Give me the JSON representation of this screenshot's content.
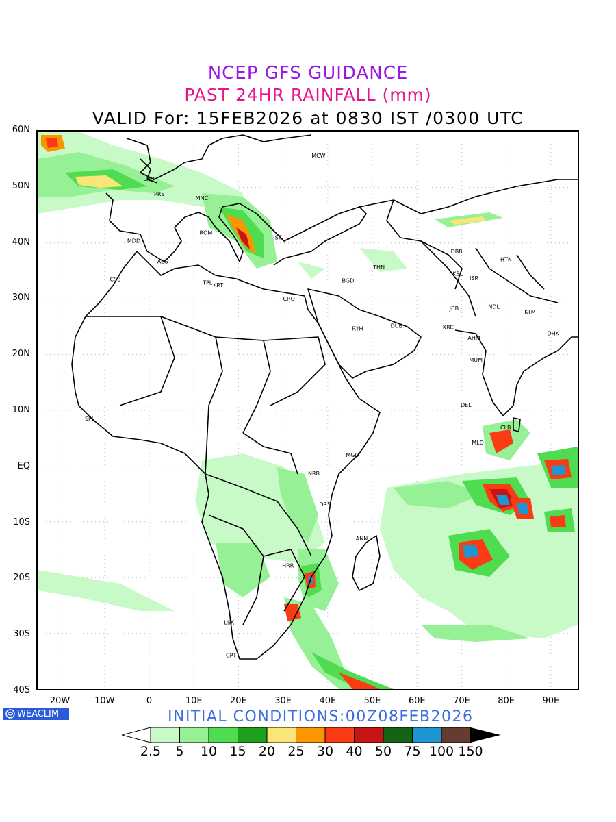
{
  "title": {
    "line1": "NCEP GFS GUIDANCE",
    "line2": "PAST 24HR RAINFALL (mm)",
    "line3": "VALID For: 15FEB2026 at 0830 IST /0300 UTC"
  },
  "lat_labels": [
    "60N",
    "50N",
    "40N",
    "30N",
    "20N",
    "10N",
    "EQ",
    "10S",
    "20S",
    "30S",
    "40S"
  ],
  "lon_labels": [
    "20W",
    "10W",
    "0",
    "10E",
    "20E",
    "30E",
    "40E",
    "50E",
    "60E",
    "70E",
    "80E",
    "90E"
  ],
  "logo": {
    "text": "WEACLIM",
    "icon": "globe-icon"
  },
  "initial_conditions": "INITIAL CONDITIONS:00Z08FEB2026",
  "legend": {
    "labels": [
      "2.5",
      "5",
      "10",
      "15",
      "20",
      "25",
      "30",
      "40",
      "50",
      "75",
      "100",
      "150"
    ],
    "colors": [
      "#c8fac8",
      "#96f096",
      "#50dc50",
      "#1ea01e",
      "#fae678",
      "#fa9600",
      "#fa3c14",
      "#c81414",
      "#146414",
      "#1e96d2",
      "#643c32"
    ]
  },
  "cities": [
    {
      "code": "LND"
    },
    {
      "code": "PRS"
    },
    {
      "code": "MCW"
    },
    {
      "code": "MNC"
    },
    {
      "code": "ROM"
    },
    {
      "code": "MDD"
    },
    {
      "code": "IST"
    },
    {
      "code": "ALG"
    },
    {
      "code": "CSB"
    },
    {
      "code": "TPL"
    },
    {
      "code": "KRT"
    },
    {
      "code": "CRO"
    },
    {
      "code": "BGD"
    },
    {
      "code": "THN"
    },
    {
      "code": "DBB"
    },
    {
      "code": "HTN"
    },
    {
      "code": "KBL"
    },
    {
      "code": "ISR"
    },
    {
      "code": "RYH"
    },
    {
      "code": "DUB"
    },
    {
      "code": "JCB"
    },
    {
      "code": "NDL"
    },
    {
      "code": "KRC"
    },
    {
      "code": "AHM"
    },
    {
      "code": "MUM"
    },
    {
      "code": "KTM"
    },
    {
      "code": "DHK"
    },
    {
      "code": "DEL"
    },
    {
      "code": "CLB"
    },
    {
      "code": "MLD"
    },
    {
      "code": "SPL"
    },
    {
      "code": "MGD"
    },
    {
      "code": "NRB"
    },
    {
      "code": "DRS"
    },
    {
      "code": "ANN"
    },
    {
      "code": "HRR"
    },
    {
      "code": "LSK"
    },
    {
      "code": "CPT"
    }
  ]
}
